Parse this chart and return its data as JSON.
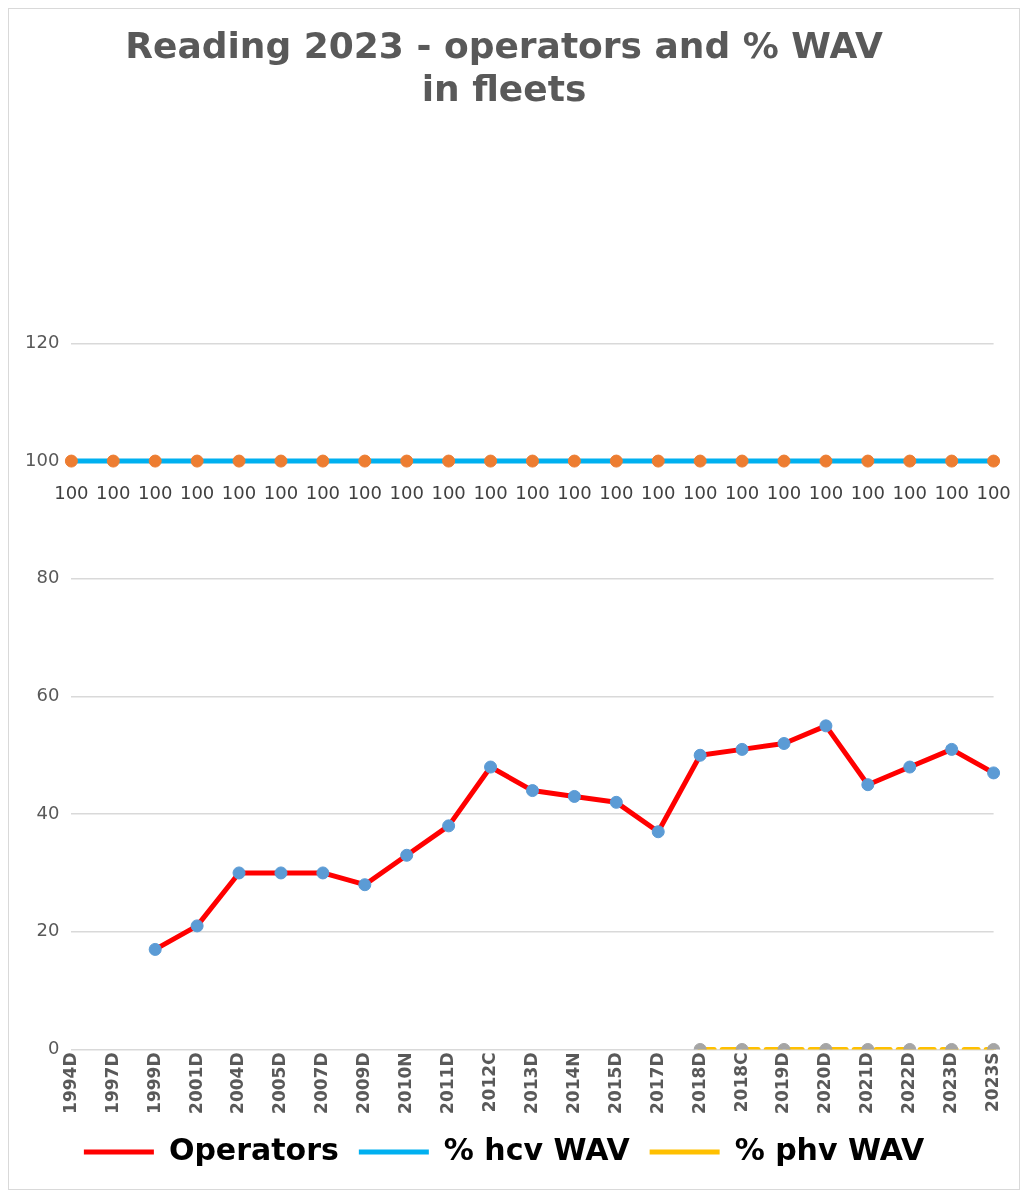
{
  "chart_data": {
    "type": "line",
    "title": "Reading 2023 - operators and % WAV\nin fleets",
    "categories": [
      "1994D",
      "1997D",
      "1999D",
      "2001D",
      "2004D",
      "2005D",
      "2007D",
      "2009D",
      "2010N",
      "2011D",
      "2012C",
      "2013D",
      "2014N",
      "2015D",
      "2017D",
      "2018D",
      "2018C",
      "2019D",
      "2020D",
      "2021D",
      "2022D",
      "2023D",
      "2023S"
    ],
    "series": [
      {
        "name": "Operators",
        "color": "#ff0000",
        "values": [
          null,
          null,
          17,
          21,
          30,
          30,
          30,
          28,
          33,
          38,
          48,
          44,
          43,
          42,
          37,
          50,
          51,
          52,
          55,
          45,
          48,
          51,
          47
        ]
      },
      {
        "name": "% hcv WAV",
        "color": "#00b0f0",
        "values": [
          100,
          100,
          100,
          100,
          100,
          100,
          100,
          100,
          100,
          100,
          100,
          100,
          100,
          100,
          100,
          100,
          100,
          100,
          100,
          100,
          100,
          100,
          100
        ],
        "value_labels": [
          "100",
          "100",
          "100",
          "100",
          "100",
          "100",
          "100",
          "100",
          "100",
          "100",
          "100",
          "100",
          "100",
          "100",
          "100",
          "100",
          "100",
          "100",
          "100",
          "100",
          "100",
          "100",
          "100"
        ]
      },
      {
        "name": "% phv WAV",
        "color": "#ffc000",
        "line_style": "dashed",
        "values": [
          null,
          null,
          null,
          null,
          null,
          null,
          null,
          null,
          null,
          null,
          null,
          null,
          null,
          null,
          null,
          0,
          0,
          0,
          0,
          0,
          0,
          0,
          0
        ]
      }
    ],
    "ylim": [
      0,
      120
    ],
    "yticks": [
      0,
      20,
      40,
      60,
      80,
      100,
      120
    ],
    "grid": "y",
    "legend": "bottom",
    "marker": "circle"
  }
}
